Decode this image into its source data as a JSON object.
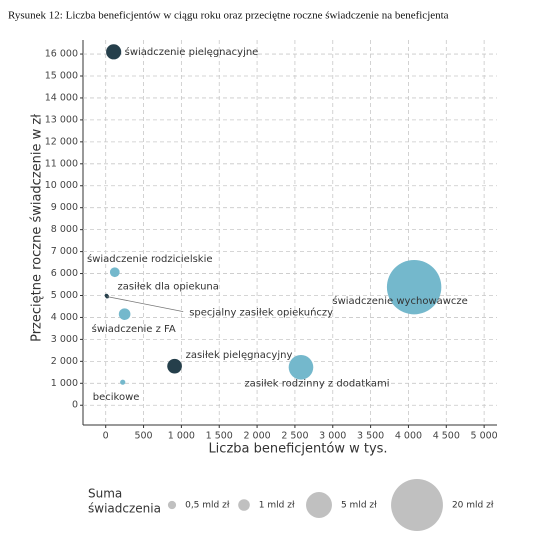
{
  "chart_data": {
    "type": "bubble",
    "title": "Rysunek 12: Liczba beneficjentów w ciągu roku oraz przeciętne roczne świadczenie na beneficjenta",
    "xlabel": "Liczba beneficjentów w tys.",
    "ylabel": "Przeciętne roczne świadczenie w zł",
    "xlim": [
      -300,
      5170
    ],
    "ylim": [
      -900,
      16640
    ],
    "xticks": [
      0,
      500,
      {
        "value": 1000,
        "label": "1 000"
      },
      {
        "value": 1500,
        "label": "1 500"
      },
      {
        "value": 2000,
        "label": "2 000"
      },
      {
        "value": 2500,
        "label": "2 500"
      },
      {
        "value": 3000,
        "label": "3 000"
      },
      {
        "value": 3500,
        "label": "3 500"
      },
      {
        "value": 4000,
        "label": "4 000"
      },
      {
        "value": 4500,
        "label": "4 500"
      },
      {
        "value": 5000,
        "label": "5 000"
      }
    ],
    "yticks": [
      0,
      {
        "value": 1000,
        "label": "1 000"
      },
      {
        "value": 2000,
        "label": "2 000"
      },
      {
        "value": 3000,
        "label": "3 000"
      },
      {
        "value": 4000,
        "label": "4 000"
      },
      {
        "value": 5000,
        "label": "5 000"
      },
      {
        "value": 6000,
        "label": "6 000"
      },
      {
        "value": 7000,
        "label": "7 000"
      },
      {
        "value": 8000,
        "label": "8 000"
      },
      {
        "value": 9000,
        "label": "9 000"
      },
      {
        "value": 10000,
        "label": "10 000"
      },
      {
        "value": 11000,
        "label": "11 000"
      },
      {
        "value": 12000,
        "label": "12 000"
      },
      {
        "value": 13000,
        "label": "13 000"
      },
      {
        "value": 14000,
        "label": "14 000"
      },
      {
        "value": 15000,
        "label": "15 000"
      },
      {
        "value": 16000,
        "label": "16 000"
      }
    ],
    "grid": true,
    "points": [
      {
        "name": "świadczenie pielęgnacyjne",
        "x": 105,
        "y": 16100,
        "size": 1.7,
        "color": "#253f4b"
      },
      {
        "name": "świadczenie rodzicielskie",
        "x": 120,
        "y": 6060,
        "size": 0.7,
        "color": "#74b8cc"
      },
      {
        "name": "zasiłek dla opiekuna",
        "x": 10,
        "y": 5000,
        "size": 0.05,
        "color": "#253f4b"
      },
      {
        "name": "specjalny zasiłek opiekuńczy",
        "x": 20,
        "y": 4950,
        "size": 0.1,
        "color": "#253f4b"
      },
      {
        "name": "świadczenie z FA",
        "x": 250,
        "y": 4150,
        "size": 1.0,
        "color": "#74b8cc"
      },
      {
        "name": "zasiłek pielęgnacyjny",
        "x": 910,
        "y": 1780,
        "size": 1.6,
        "color": "#253f4b"
      },
      {
        "name": "zasiłek rodzinny z dodatkami",
        "x": 2580,
        "y": 1730,
        "size": 4.5,
        "color": "#74b8cc"
      },
      {
        "name": "becikowe",
        "x": 225,
        "y": 1050,
        "size": 0.2,
        "color": "#74b8cc"
      },
      {
        "name": "świadczenie wychowawcze",
        "x": 4075,
        "y": 5380,
        "size": 22,
        "color": "#74b8cc"
      }
    ],
    "size_legend": {
      "title": [
        "Suma",
        "świadczenia"
      ],
      "color": "#c0c0c0",
      "items": [
        {
          "value": 0.5,
          "label": "0,5 mld zł"
        },
        {
          "value": 1,
          "label": "1 mld zł"
        },
        {
          "value": 5,
          "label": "5 mld zł"
        },
        {
          "value": 20,
          "label": "20 mld zł"
        }
      ]
    }
  }
}
